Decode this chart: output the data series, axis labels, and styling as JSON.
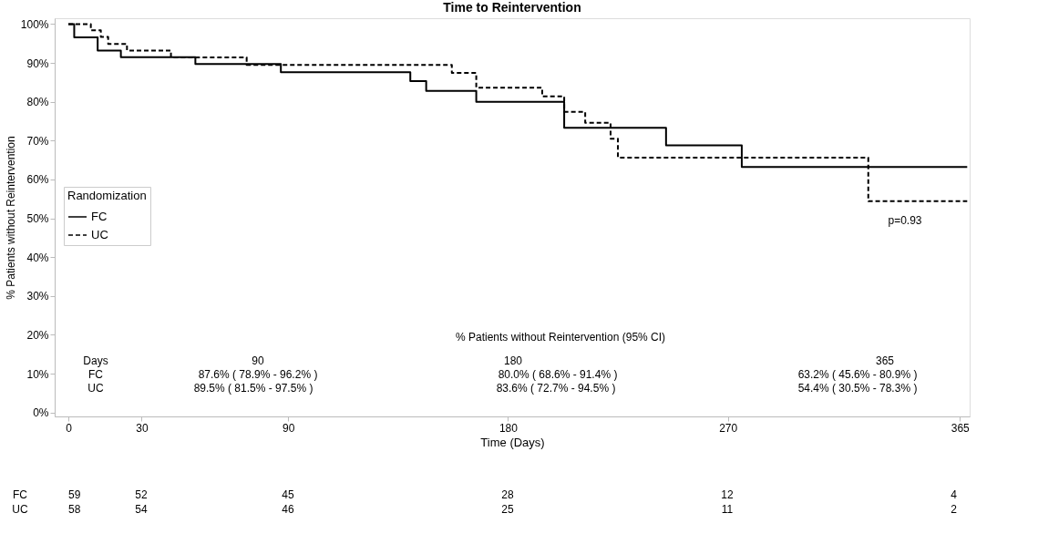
{
  "chart_data": {
    "type": "step",
    "title": "Time to Reintervention",
    "xlabel": "Time (Days)",
    "ylabel": "% Patients without Reintervention",
    "legend_title": "Randomization",
    "legend": "left",
    "grid": false,
    "marker": "none",
    "xlim": [
      -5.6,
      369
    ],
    "xticks": [
      0,
      30,
      90,
      180,
      270,
      365
    ],
    "ylim": [
      -1,
      101.5
    ],
    "yticks": [
      {
        "value": 0,
        "label": "0%"
      },
      {
        "value": 10,
        "label": "10%"
      },
      {
        "value": 20,
        "label": "20%"
      },
      {
        "value": 30,
        "label": "30%"
      },
      {
        "value": 40,
        "label": "40%"
      },
      {
        "value": 50,
        "label": "50%"
      },
      {
        "value": 60,
        "label": "60%"
      },
      {
        "value": 70,
        "label": "70%"
      },
      {
        "value": 80,
        "label": "80%"
      },
      {
        "value": 90,
        "label": "90%"
      },
      {
        "value": 100,
        "label": "100%"
      }
    ],
    "series": [
      {
        "name": "FC",
        "color": "#000000",
        "line_style": "solid",
        "x": [
          0,
          2.4,
          12,
          21.5,
          52,
          87,
          140,
          146.5,
          167,
          203,
          244.7,
          275.7,
          368
        ],
        "values": [
          100,
          96.6,
          93.2,
          91.5,
          89.7,
          87.6,
          85.3,
          82.8,
          80.0,
          73.3,
          68.8,
          63.2,
          63.2
        ]
      },
      {
        "name": "UC",
        "color": "#000000",
        "line_style": "dashed",
        "x": [
          0,
          9.2,
          13.3,
          16.3,
          24,
          42,
          73,
          157,
          167,
          194,
          203,
          211.6,
          222,
          225,
          327.5,
          368
        ],
        "values": [
          100,
          98.4,
          96.7,
          94.9,
          93.2,
          91.4,
          89.5,
          87.4,
          83.6,
          81.4,
          77.4,
          74.6,
          70.5,
          65.6,
          54.4,
          54.4
        ]
      }
    ],
    "annotations": [
      "% Patients without Reintervention (95% CI)",
      "Days",
      "90",
      "180",
      "365",
      "FC",
      "87.6% ( 78.9% - 96.2% )",
      "80.0% ( 68.6% - 91.4% )",
      "63.2% ( 45.6% - 80.9% )",
      "UC",
      "89.5% ( 81.5% - 97.5% )",
      "83.6% ( 72.7% - 94.5% )",
      "54.4% ( 30.5% - 78.3% )",
      "p=0.93",
      "FC",
      "59",
      "52",
      "45",
      "28",
      "12",
      "4",
      "UC",
      "58",
      "54",
      "46",
      "25",
      "11",
      "2"
    ]
  }
}
